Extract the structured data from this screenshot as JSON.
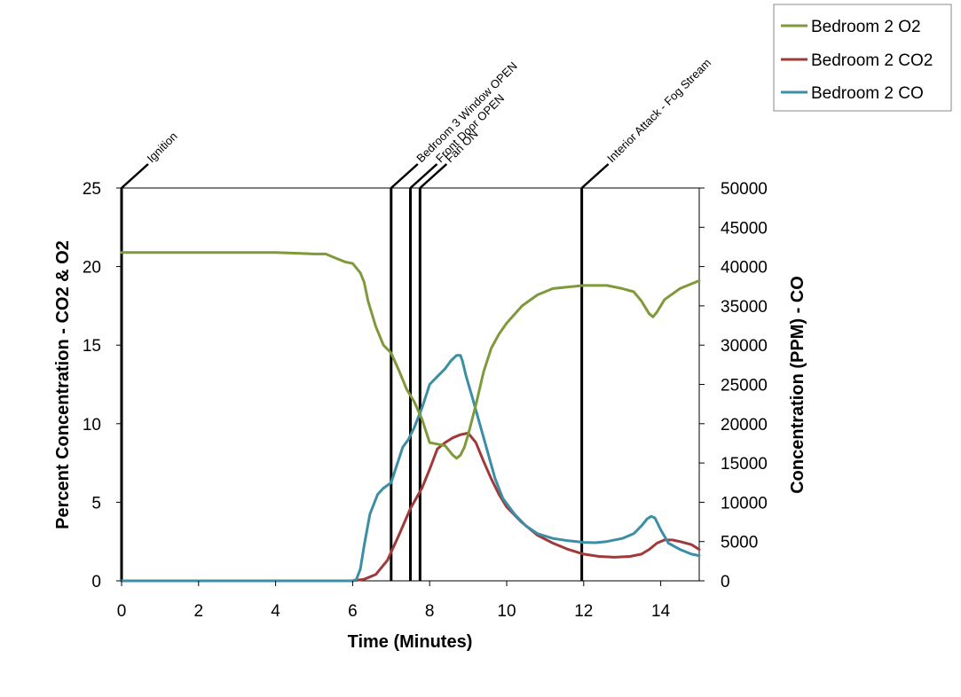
{
  "chart_data": {
    "type": "line",
    "xlabel": "Time (Minutes)",
    "ylabel_left": "Percent Concentration - CO2 & O2",
    "ylabel_right": "Concentration (PPM) - CO",
    "xlim": [
      0,
      15
    ],
    "ylim_left": [
      0,
      25
    ],
    "ylim_right": [
      0,
      50000
    ],
    "x_ticks": [
      0,
      2,
      4,
      6,
      8,
      10,
      12,
      14
    ],
    "y_left_ticks": [
      0,
      5,
      10,
      15,
      20,
      25
    ],
    "y_right_ticks": [
      0,
      5000,
      10000,
      15000,
      20000,
      25000,
      30000,
      35000,
      40000,
      45000,
      50000
    ],
    "grid": false,
    "legend_position": "top-right",
    "events": [
      {
        "label": "Ignition",
        "x": 0
      },
      {
        "label": "Bedroom 3 Window OPEN",
        "x": 7.0
      },
      {
        "label": "Front Door OPEN",
        "x": 7.5
      },
      {
        "label": "Fan ON",
        "x": 7.75
      },
      {
        "label": "Interior Attack - Fog Stream",
        "x": 11.95
      }
    ],
    "series": [
      {
        "name": "Bedroom 2 O2",
        "axis": "left",
        "color": "#7f9a3a",
        "x": [
          0,
          0.5,
          1,
          2,
          3,
          4,
          4.5,
          5,
          5.3,
          5.5,
          5.8,
          6.0,
          6.2,
          6.3,
          6.4,
          6.6,
          6.8,
          7.0,
          7.2,
          7.4,
          7.6,
          7.8,
          8.0,
          8.2,
          8.4,
          8.6,
          8.7,
          8.8,
          8.9,
          9.0,
          9.2,
          9.4,
          9.6,
          9.8,
          10.0,
          10.4,
          10.8,
          11.2,
          11.6,
          12.0,
          12.3,
          12.6,
          13.0,
          13.3,
          13.5,
          13.7,
          13.8,
          13.9,
          14.1,
          14.5,
          15.0
        ],
        "values": [
          20.9,
          20.9,
          20.9,
          20.9,
          20.9,
          20.9,
          20.85,
          20.8,
          20.8,
          20.6,
          20.3,
          20.2,
          19.6,
          19.0,
          17.8,
          16.2,
          15.0,
          14.5,
          13.4,
          12.2,
          11.4,
          10.3,
          8.8,
          8.7,
          8.6,
          8.0,
          7.8,
          8.0,
          8.5,
          9.3,
          11.2,
          13.3,
          14.8,
          15.7,
          16.4,
          17.5,
          18.2,
          18.6,
          18.7,
          18.8,
          18.8,
          18.8,
          18.6,
          18.4,
          17.8,
          17.0,
          16.8,
          17.1,
          17.9,
          18.6,
          19.1
        ]
      },
      {
        "name": "Bedroom 2 CO2",
        "axis": "left",
        "color": "#a0393a",
        "x": [
          0,
          2,
          4,
          6.0,
          6.3,
          6.6,
          6.9,
          7.2,
          7.5,
          7.8,
          8.0,
          8.2,
          8.4,
          8.6,
          8.8,
          9.0,
          9.2,
          9.4,
          9.6,
          9.8,
          10.0,
          10.4,
          10.8,
          11.2,
          11.6,
          12.0,
          12.4,
          12.8,
          13.2,
          13.5,
          13.7,
          13.9,
          14.1,
          14.3,
          14.5,
          14.8,
          15.0
        ],
        "values": [
          0,
          0,
          0,
          0,
          0.1,
          0.4,
          1.3,
          2.9,
          4.6,
          5.9,
          7.1,
          8.4,
          8.8,
          9.1,
          9.3,
          9.4,
          8.8,
          7.6,
          6.5,
          5.5,
          4.7,
          3.7,
          2.9,
          2.4,
          2.0,
          1.7,
          1.55,
          1.5,
          1.55,
          1.7,
          2.0,
          2.4,
          2.6,
          2.6,
          2.5,
          2.3,
          2.0
        ]
      },
      {
        "name": "Bedroom 2 CO",
        "axis": "right",
        "color": "#3b8ea5",
        "x": [
          0,
          2,
          4,
          6.0,
          6.1,
          6.2,
          6.3,
          6.45,
          6.65,
          6.8,
          7.0,
          7.1,
          7.2,
          7.3,
          7.45,
          7.6,
          7.8,
          7.9,
          8.0,
          8.2,
          8.4,
          8.55,
          8.7,
          8.8,
          8.85,
          8.95,
          9.1,
          9.3,
          9.5,
          9.7,
          9.9,
          10.2,
          10.5,
          10.8,
          11.2,
          11.6,
          12.0,
          12.3,
          12.6,
          13.0,
          13.3,
          13.5,
          13.65,
          13.75,
          13.85,
          14.0,
          14.2,
          14.5,
          14.8,
          15.0
        ],
        "values": [
          0,
          0,
          0,
          0,
          200,
          1500,
          4500,
          8500,
          11000,
          11800,
          12500,
          14000,
          15500,
          17000,
          18000,
          19500,
          22000,
          23500,
          25000,
          26000,
          27000,
          28000,
          28700,
          28700,
          28000,
          26000,
          23500,
          20000,
          16500,
          13000,
          10500,
          8500,
          7000,
          6000,
          5400,
          5100,
          4900,
          4850,
          5000,
          5400,
          6000,
          7000,
          7900,
          8200,
          8000,
          6500,
          4800,
          4000,
          3400,
          3200
        ]
      }
    ]
  }
}
